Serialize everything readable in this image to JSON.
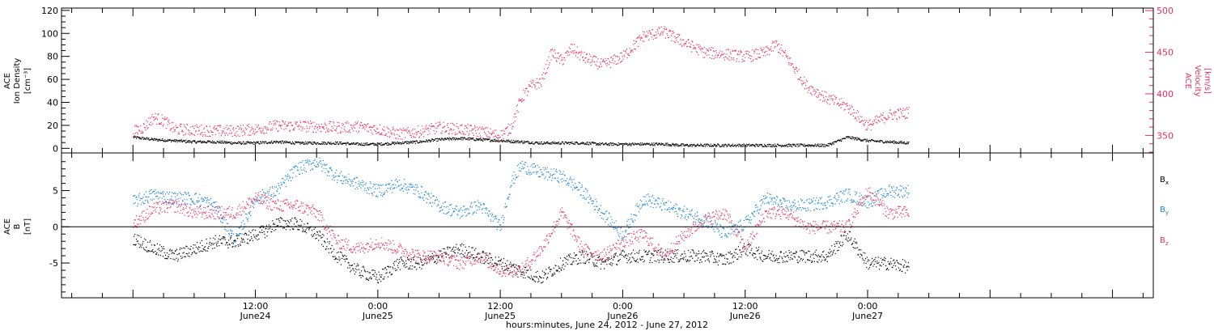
{
  "chart_data": [
    {
      "type": "scatter",
      "panel": "top",
      "ylabel_left": [
        "ACE",
        "Ion Density",
        "[cm⁻³]"
      ],
      "ylabel_right": [
        "ACE",
        "Velocity",
        "[km/s]"
      ],
      "y_left_ticks": [
        "0",
        "20",
        "40",
        "60",
        "80",
        "100",
        "120"
      ],
      "y_left_range": [
        -4,
        122
      ],
      "y_right_ticks": [
        "350",
        "400",
        "450",
        "500"
      ],
      "y_right_range": [
        329,
        503
      ],
      "series": [
        {
          "color": "#000000",
          "axis": "left",
          "x_hours": [
            0,
            2,
            4,
            6,
            8,
            10,
            12,
            14,
            16,
            18,
            20,
            22,
            24,
            26,
            28,
            30,
            32,
            34,
            36,
            38,
            40,
            42,
            44,
            46,
            48,
            50,
            52,
            54,
            56,
            58,
            60,
            62,
            64,
            66,
            68,
            70,
            72,
            74,
            76
          ],
          "y": [
            10,
            8,
            7,
            6,
            6,
            5,
            5,
            6,
            5,
            5,
            5,
            4,
            4,
            5,
            6,
            8,
            9,
            8,
            7,
            6,
            5,
            5,
            5,
            4,
            4,
            4,
            4,
            3,
            3,
            3,
            3,
            3,
            3,
            3,
            3,
            10,
            7,
            6,
            5
          ]
        },
        {
          "color": "#e8315f",
          "axis": "right",
          "x_hours": [
            0,
            1,
            2,
            3,
            4,
            6,
            8,
            10,
            12,
            14,
            16,
            18,
            20,
            22,
            24,
            26,
            28,
            30,
            32,
            34,
            36,
            37,
            38,
            39,
            40,
            41,
            42,
            43,
            44,
            46,
            48,
            50,
            52,
            54,
            56,
            58,
            60,
            62,
            63,
            64,
            66,
            68,
            70,
            72,
            74,
            76
          ],
          "y": [
            355,
            360,
            372,
            368,
            358,
            357,
            356,
            356,
            358,
            362,
            362,
            361,
            360,
            361,
            358,
            352,
            355,
            360,
            358,
            355,
            350,
            360,
            395,
            410,
            415,
            450,
            440,
            455,
            445,
            435,
            445,
            470,
            475,
            462,
            450,
            448,
            445,
            450,
            460,
            445,
            410,
            395,
            385,
            362,
            375,
            378
          ]
        }
      ]
    },
    {
      "type": "scatter",
      "panel": "bottom",
      "ylabel_left": [
        "ACE",
        "B",
        "[nT]"
      ],
      "y_left_ticks": [
        "-5",
        "0",
        "5"
      ],
      "y_left_range": [
        -9.8,
        10.2
      ],
      "zero_line": true,
      "series": [
        {
          "name": "B",
          "subscript": "x",
          "color": "#000000",
          "x_hours": [
            0,
            2,
            4,
            6,
            8,
            10,
            12,
            13,
            14,
            16,
            18,
            20,
            22,
            24,
            26,
            28,
            30,
            32,
            34,
            36,
            38,
            40,
            42,
            44,
            46,
            48,
            50,
            52,
            54,
            56,
            58,
            60,
            62,
            64,
            66,
            68,
            70,
            72,
            74,
            76
          ],
          "y": [
            -1.5,
            -3,
            -4,
            -3,
            -2,
            -2,
            -1,
            -0.5,
            0.5,
            0.5,
            -1,
            -4,
            -6,
            -7,
            -5,
            -5,
            -4,
            -3,
            -4,
            -5,
            -6,
            -7,
            -5,
            -4,
            -5,
            -4,
            -4,
            -4,
            -4,
            -4,
            -4.5,
            -3,
            -4,
            -4,
            -4,
            -4,
            -1,
            -5,
            -5,
            -5.5
          ]
        },
        {
          "name": "B",
          "subscript": "y",
          "color": "#1a86d6",
          "x_hours": [
            0,
            2,
            4,
            6,
            8,
            10,
            12,
            14,
            16,
            18,
            20,
            22,
            24,
            26,
            28,
            30,
            32,
            34,
            36,
            37,
            38,
            40,
            42,
            44,
            46,
            48,
            50,
            52,
            54,
            56,
            58,
            60,
            62,
            64,
            66,
            68,
            70,
            72,
            74,
            76
          ],
          "y": [
            3.5,
            4.5,
            4,
            4,
            3,
            -2,
            4,
            5,
            8,
            9,
            7,
            6,
            5,
            6,
            5,
            3,
            2,
            3,
            0,
            6,
            8.5,
            7.5,
            7,
            5,
            2,
            -1,
            4,
            3,
            2,
            1,
            -1,
            0.5,
            4,
            3,
            3,
            3.5,
            4.5,
            3.5,
            5,
            5
          ]
        },
        {
          "name": "B",
          "subscript": "z",
          "color": "#e8315f",
          "x_hours": [
            0,
            2,
            4,
            6,
            8,
            10,
            12,
            14,
            16,
            18,
            20,
            22,
            24,
            26,
            28,
            30,
            32,
            34,
            36,
            38,
            40,
            42,
            44,
            46,
            48,
            50,
            52,
            54,
            56,
            58,
            60,
            62,
            64,
            66,
            68,
            70,
            72,
            74,
            76
          ],
          "y": [
            0.5,
            2.5,
            3,
            2,
            2,
            2,
            4,
            3,
            3,
            2,
            -2,
            -3,
            -2,
            -3,
            -4,
            -4,
            -5,
            -4,
            -6,
            -6,
            -3,
            2,
            -3,
            -4,
            -2,
            -1,
            -4,
            -1,
            1,
            2,
            -3,
            2,
            2,
            0,
            0,
            0,
            5,
            2,
            2
          ]
        }
      ]
    }
  ],
  "x_axis": {
    "range_hours": [
      -7,
      100
    ],
    "major_ticks": [
      {
        "hour": 12,
        "time": "12:00",
        "date": "June24"
      },
      {
        "hour": 24,
        "time": "0:00",
        "date": "June25"
      },
      {
        "hour": 36,
        "time": "12:00",
        "date": "June25"
      },
      {
        "hour": 48,
        "time": "0:00",
        "date": "June26"
      },
      {
        "hour": 60,
        "time": "12:00",
        "date": "June26"
      },
      {
        "hour": 72,
        "time": "0:00",
        "date": "June27"
      }
    ],
    "title": "hours:minutes, June 24, 2012 - June 27, 2012"
  },
  "colors": {
    "black": "#000000",
    "magenta": "#e8315f",
    "blue": "#1a86d6"
  }
}
